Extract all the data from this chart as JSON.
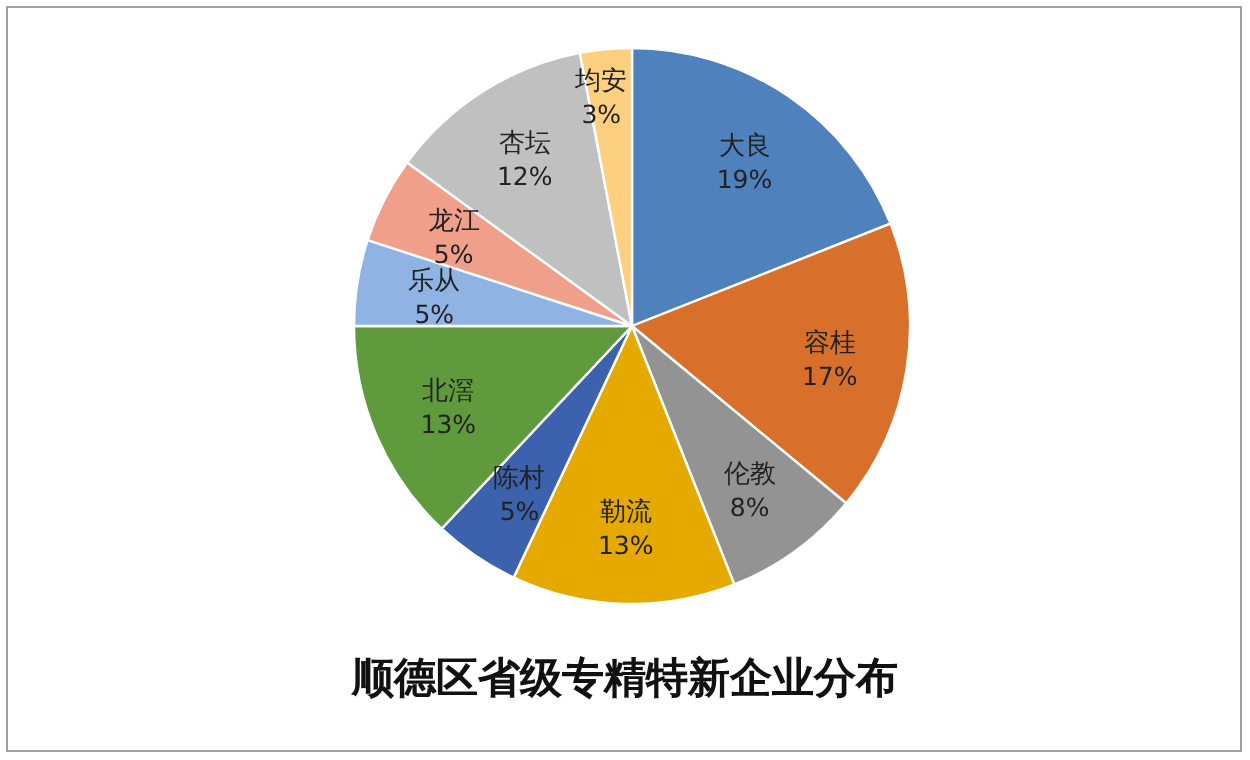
{
  "chart_data": {
    "type": "pie",
    "title": "顺德区省级专精特新企业分布",
    "categories": [
      "大良",
      "容桂",
      "伦教",
      "勒流",
      "陈村",
      "北滘",
      "乐从",
      "龙江",
      "杏坛",
      "均安"
    ],
    "values": [
      19,
      17,
      8,
      13,
      5,
      13,
      5,
      5,
      12,
      3
    ],
    "colors": [
      "#4f81bd",
      "#d8702c",
      "#939393",
      "#e5a900",
      "#3d62ad",
      "#5f9a3c",
      "#8fb3e2",
      "#f0a08a",
      "#c0c0c0",
      "#fdd07f"
    ],
    "value_labels": [
      "19%",
      "17%",
      "8%",
      "13%",
      "5%",
      "13%",
      "5%",
      "5%",
      "12%",
      "3%"
    ]
  }
}
